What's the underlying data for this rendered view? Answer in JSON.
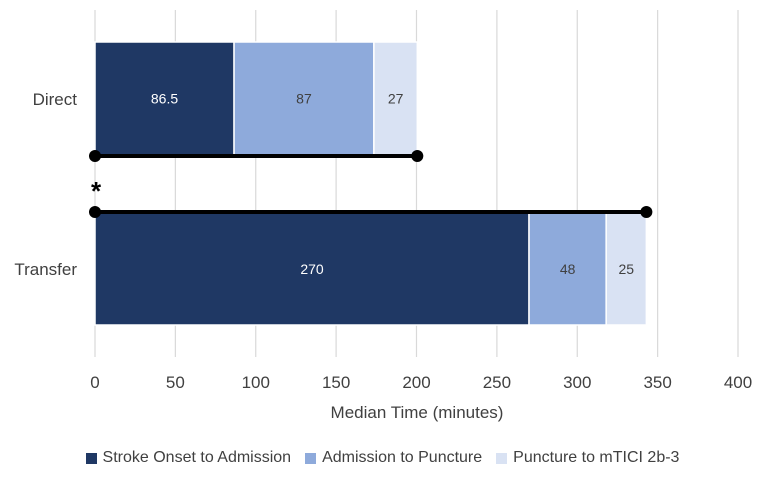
{
  "chart_data": {
    "type": "bar",
    "orientation": "horizontal",
    "stacked": true,
    "categories": [
      "Direct",
      "Transfer"
    ],
    "series": [
      {
        "name": "Stroke Onset to Admission",
        "values": [
          86.5,
          270
        ],
        "color": "#1f3864",
        "label_color": "#ffffff"
      },
      {
        "name": "Admission to Puncture",
        "values": [
          87,
          48
        ],
        "color": "#8eaadb",
        "label_color": "#404040"
      },
      {
        "name": "Puncture to mTICI 2b-3",
        "values": [
          27,
          25
        ],
        "color": "#d9e2f3",
        "label_color": "#404040"
      }
    ],
    "data_labels": [
      [
        "86.5",
        "270"
      ],
      [
        "87",
        "48"
      ],
      [
        "27",
        "25"
      ]
    ],
    "x_ticks": [
      "0",
      "50",
      "100",
      "150",
      "200",
      "250",
      "300",
      "350",
      "400"
    ],
    "xlim": [
      0,
      400
    ],
    "xlabel": "Median Time (minutes)",
    "grid": "vertical",
    "legend_position": "bottom",
    "annotations": {
      "total_lines": [
        {
          "category": "Direct",
          "start": 0,
          "end": 200.5
        },
        {
          "category": "Transfer",
          "start": 0,
          "end": 343
        }
      ],
      "significance_marker": "*"
    }
  }
}
